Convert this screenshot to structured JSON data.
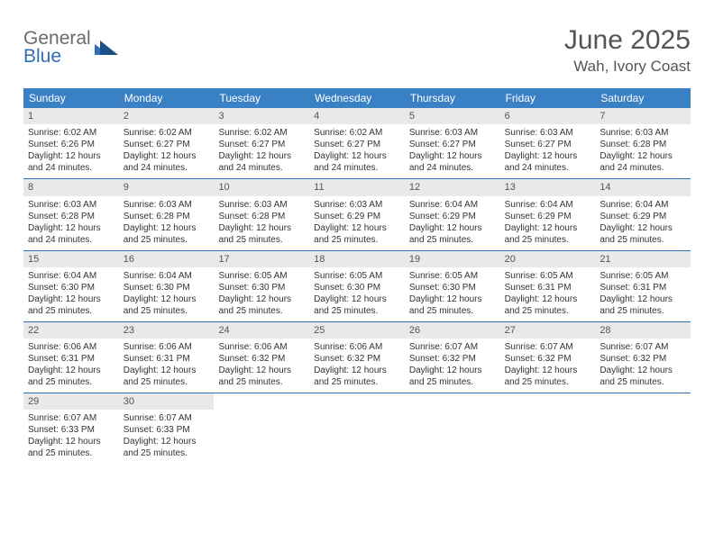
{
  "logo": {
    "general": "General",
    "blue": "Blue"
  },
  "title": "June 2025",
  "location": "Wah, Ivory Coast",
  "colors": {
    "header_bg": "#3a80c4",
    "header_text": "#ffffff",
    "week_border": "#2f6fb3",
    "daynum_bg": "#e9e9e9",
    "text": "#333333",
    "muted": "#555555",
    "logo_gray": "#6b6b6b",
    "logo_blue": "#2f6fb3"
  },
  "day_names": [
    "Sunday",
    "Monday",
    "Tuesday",
    "Wednesday",
    "Thursday",
    "Friday",
    "Saturday"
  ],
  "weeks": [
    [
      {
        "n": "1",
        "sunrise": "Sunrise: 6:02 AM",
        "sunset": "Sunset: 6:26 PM",
        "day1": "Daylight: 12 hours",
        "day2": "and 24 minutes."
      },
      {
        "n": "2",
        "sunrise": "Sunrise: 6:02 AM",
        "sunset": "Sunset: 6:27 PM",
        "day1": "Daylight: 12 hours",
        "day2": "and 24 minutes."
      },
      {
        "n": "3",
        "sunrise": "Sunrise: 6:02 AM",
        "sunset": "Sunset: 6:27 PM",
        "day1": "Daylight: 12 hours",
        "day2": "and 24 minutes."
      },
      {
        "n": "4",
        "sunrise": "Sunrise: 6:02 AM",
        "sunset": "Sunset: 6:27 PM",
        "day1": "Daylight: 12 hours",
        "day2": "and 24 minutes."
      },
      {
        "n": "5",
        "sunrise": "Sunrise: 6:03 AM",
        "sunset": "Sunset: 6:27 PM",
        "day1": "Daylight: 12 hours",
        "day2": "and 24 minutes."
      },
      {
        "n": "6",
        "sunrise": "Sunrise: 6:03 AM",
        "sunset": "Sunset: 6:27 PM",
        "day1": "Daylight: 12 hours",
        "day2": "and 24 minutes."
      },
      {
        "n": "7",
        "sunrise": "Sunrise: 6:03 AM",
        "sunset": "Sunset: 6:28 PM",
        "day1": "Daylight: 12 hours",
        "day2": "and 24 minutes."
      }
    ],
    [
      {
        "n": "8",
        "sunrise": "Sunrise: 6:03 AM",
        "sunset": "Sunset: 6:28 PM",
        "day1": "Daylight: 12 hours",
        "day2": "and 24 minutes."
      },
      {
        "n": "9",
        "sunrise": "Sunrise: 6:03 AM",
        "sunset": "Sunset: 6:28 PM",
        "day1": "Daylight: 12 hours",
        "day2": "and 25 minutes."
      },
      {
        "n": "10",
        "sunrise": "Sunrise: 6:03 AM",
        "sunset": "Sunset: 6:28 PM",
        "day1": "Daylight: 12 hours",
        "day2": "and 25 minutes."
      },
      {
        "n": "11",
        "sunrise": "Sunrise: 6:03 AM",
        "sunset": "Sunset: 6:29 PM",
        "day1": "Daylight: 12 hours",
        "day2": "and 25 minutes."
      },
      {
        "n": "12",
        "sunrise": "Sunrise: 6:04 AM",
        "sunset": "Sunset: 6:29 PM",
        "day1": "Daylight: 12 hours",
        "day2": "and 25 minutes."
      },
      {
        "n": "13",
        "sunrise": "Sunrise: 6:04 AM",
        "sunset": "Sunset: 6:29 PM",
        "day1": "Daylight: 12 hours",
        "day2": "and 25 minutes."
      },
      {
        "n": "14",
        "sunrise": "Sunrise: 6:04 AM",
        "sunset": "Sunset: 6:29 PM",
        "day1": "Daylight: 12 hours",
        "day2": "and 25 minutes."
      }
    ],
    [
      {
        "n": "15",
        "sunrise": "Sunrise: 6:04 AM",
        "sunset": "Sunset: 6:30 PM",
        "day1": "Daylight: 12 hours",
        "day2": "and 25 minutes."
      },
      {
        "n": "16",
        "sunrise": "Sunrise: 6:04 AM",
        "sunset": "Sunset: 6:30 PM",
        "day1": "Daylight: 12 hours",
        "day2": "and 25 minutes."
      },
      {
        "n": "17",
        "sunrise": "Sunrise: 6:05 AM",
        "sunset": "Sunset: 6:30 PM",
        "day1": "Daylight: 12 hours",
        "day2": "and 25 minutes."
      },
      {
        "n": "18",
        "sunrise": "Sunrise: 6:05 AM",
        "sunset": "Sunset: 6:30 PM",
        "day1": "Daylight: 12 hours",
        "day2": "and 25 minutes."
      },
      {
        "n": "19",
        "sunrise": "Sunrise: 6:05 AM",
        "sunset": "Sunset: 6:30 PM",
        "day1": "Daylight: 12 hours",
        "day2": "and 25 minutes."
      },
      {
        "n": "20",
        "sunrise": "Sunrise: 6:05 AM",
        "sunset": "Sunset: 6:31 PM",
        "day1": "Daylight: 12 hours",
        "day2": "and 25 minutes."
      },
      {
        "n": "21",
        "sunrise": "Sunrise: 6:05 AM",
        "sunset": "Sunset: 6:31 PM",
        "day1": "Daylight: 12 hours",
        "day2": "and 25 minutes."
      }
    ],
    [
      {
        "n": "22",
        "sunrise": "Sunrise: 6:06 AM",
        "sunset": "Sunset: 6:31 PM",
        "day1": "Daylight: 12 hours",
        "day2": "and 25 minutes."
      },
      {
        "n": "23",
        "sunrise": "Sunrise: 6:06 AM",
        "sunset": "Sunset: 6:31 PM",
        "day1": "Daylight: 12 hours",
        "day2": "and 25 minutes."
      },
      {
        "n": "24",
        "sunrise": "Sunrise: 6:06 AM",
        "sunset": "Sunset: 6:32 PM",
        "day1": "Daylight: 12 hours",
        "day2": "and 25 minutes."
      },
      {
        "n": "25",
        "sunrise": "Sunrise: 6:06 AM",
        "sunset": "Sunset: 6:32 PM",
        "day1": "Daylight: 12 hours",
        "day2": "and 25 minutes."
      },
      {
        "n": "26",
        "sunrise": "Sunrise: 6:07 AM",
        "sunset": "Sunset: 6:32 PM",
        "day1": "Daylight: 12 hours",
        "day2": "and 25 minutes."
      },
      {
        "n": "27",
        "sunrise": "Sunrise: 6:07 AM",
        "sunset": "Sunset: 6:32 PM",
        "day1": "Daylight: 12 hours",
        "day2": "and 25 minutes."
      },
      {
        "n": "28",
        "sunrise": "Sunrise: 6:07 AM",
        "sunset": "Sunset: 6:32 PM",
        "day1": "Daylight: 12 hours",
        "day2": "and 25 minutes."
      }
    ],
    [
      {
        "n": "29",
        "sunrise": "Sunrise: 6:07 AM",
        "sunset": "Sunset: 6:33 PM",
        "day1": "Daylight: 12 hours",
        "day2": "and 25 minutes."
      },
      {
        "n": "30",
        "sunrise": "Sunrise: 6:07 AM",
        "sunset": "Sunset: 6:33 PM",
        "day1": "Daylight: 12 hours",
        "day2": "and 25 minutes."
      },
      {
        "empty": true
      },
      {
        "empty": true
      },
      {
        "empty": true
      },
      {
        "empty": true
      },
      {
        "empty": true
      }
    ]
  ]
}
